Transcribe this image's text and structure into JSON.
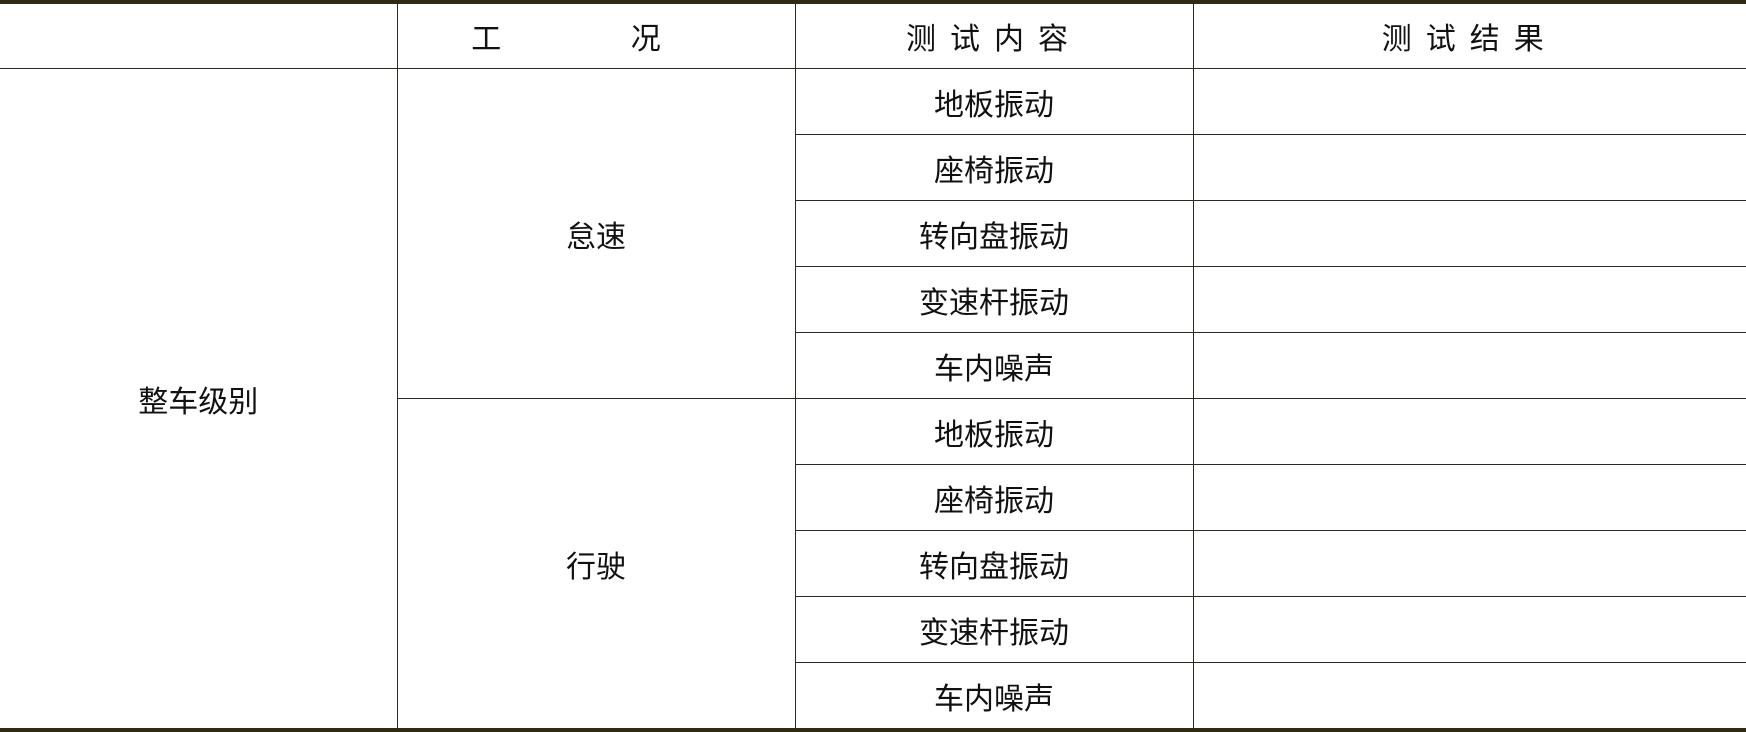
{
  "header": {
    "col0": "",
    "col1": "工 况",
    "col2": "测试内容",
    "col3": "测试结果"
  },
  "level": "整车级别",
  "groups": [
    {
      "condition": "怠速",
      "items": [
        "地板振动",
        "座椅振动",
        "转向盘振动",
        "变速杆振动",
        "车内噪声"
      ],
      "results": [
        "",
        "",
        "",
        "",
        ""
      ]
    },
    {
      "condition": "行驶",
      "items": [
        "地板振动",
        "座椅振动",
        "转向盘振动",
        "变速杆振动",
        "车内噪声"
      ],
      "results": [
        "",
        "",
        "",
        "",
        ""
      ]
    }
  ]
}
